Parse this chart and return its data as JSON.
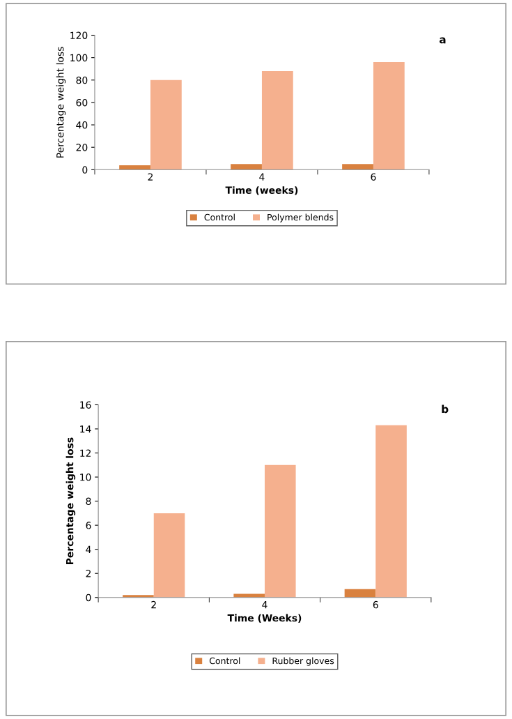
{
  "chart_data": [
    {
      "type": "bar",
      "categories": [
        "2",
        "4",
        "6"
      ],
      "xlabel": "Time (weeks)",
      "ylabel": "Percentage weight loss",
      "annotations": [
        "a"
      ],
      "series": [
        {
          "name": "Control",
          "color": "#d9813f",
          "values": [
            4,
            5,
            5
          ]
        },
        {
          "name": "Polymer blends",
          "color": "#f5b08e",
          "values": [
            80,
            88,
            96
          ]
        }
      ],
      "ylim": [
        0,
        120
      ],
      "yticks": [
        0,
        20,
        40,
        60,
        80,
        100,
        120
      ],
      "grid": false,
      "legend": "bottom"
    },
    {
      "type": "bar",
      "categories": [
        "2",
        "4",
        "6"
      ],
      "xlabel": "Time (Weeks)",
      "ylabel": "Percentage weight loss",
      "annotations": [
        "b"
      ],
      "series": [
        {
          "name": "Control",
          "color": "#d9813f",
          "values": [
            0.2,
            0.3,
            0.7
          ]
        },
        {
          "name": "Rubber gloves",
          "color": "#f5b08e",
          "values": [
            7,
            11,
            14.3
          ]
        }
      ],
      "ylim": [
        0,
        16
      ],
      "yticks": [
        0,
        2,
        4,
        6,
        8,
        10,
        12,
        14,
        16
      ],
      "grid": false,
      "legend": "bottom"
    }
  ]
}
